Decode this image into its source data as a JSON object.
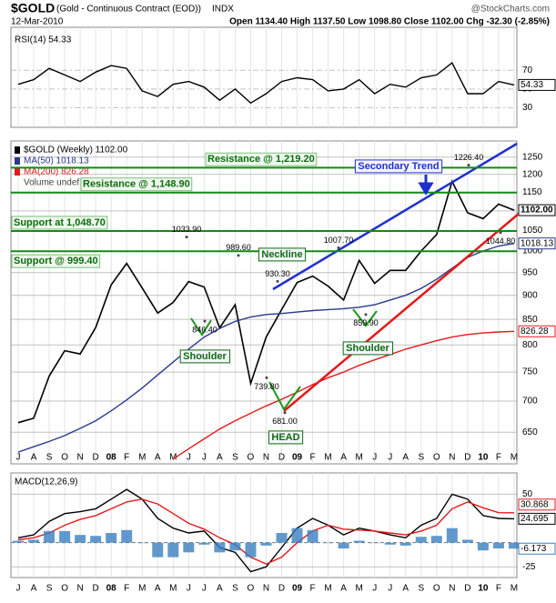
{
  "header": {
    "symbol": "$GOLD",
    "name": "(Gold - Continuous Contract (EOD))",
    "exchange": "INDX",
    "source": "@StockCharts.com",
    "date": "12-Mar-2010",
    "quote": "Open 1134.40  High 1137.50  Low 1098.80  Close 1102.00  Chg -32.30 (-2.85%)"
  },
  "chart_data": [
    {
      "type": "line",
      "ylim": [
        9,
        116
      ],
      "yticks": [
        30,
        50,
        70
      ],
      "grid": true,
      "series": [
        {
          "name": "RSI(14) 54.33",
          "color": "#000000",
          "last_value_label": "54.33",
          "values": [
            55,
            60,
            72,
            65,
            58,
            68,
            75,
            72,
            48,
            42,
            55,
            58,
            52,
            38,
            50,
            35,
            45,
            58,
            62,
            60,
            48,
            50,
            60,
            45,
            55,
            52,
            62,
            65,
            78,
            45,
            45,
            58,
            54.33
          ]
        }
      ]
    },
    {
      "type": "line",
      "log_scale": true,
      "ylim": [
        603,
        1299
      ],
      "yticks": [
        650,
        700,
        750,
        800,
        850,
        900,
        950,
        1000,
        1050,
        1100,
        1150,
        1200,
        1250
      ],
      "grid": true,
      "categories": [
        "J",
        "A",
        "S",
        "O",
        "N",
        "D",
        "08",
        "F",
        "M",
        "A",
        "M",
        "J",
        "J",
        "A",
        "S",
        "O",
        "N",
        "D",
        "09",
        "F",
        "M",
        "A",
        "M",
        "J",
        "J",
        "A",
        "S",
        "O",
        "N",
        "D",
        "10",
        "F",
        "M"
      ],
      "legend": "Volume undef",
      "series": [
        {
          "name": "$GOLD (Weekly) 1102.00",
          "color": "#000000",
          "last_value_label": "1102.00",
          "values": [
            665,
            672,
            743,
            789,
            783,
            834,
            923,
            971,
            916,
            863,
            885,
            930,
            918,
            833,
            880,
            730,
            815,
            870,
            928,
            942,
            920,
            890,
            978,
            926,
            955,
            955,
            1000,
            1040,
            1180,
            1095,
            1080,
            1118,
            1102
          ]
        },
        {
          "name": "MA(50) 1018.13",
          "color": "#2b3990",
          "last_value_label": "1018.13",
          "values": [
            620,
            628,
            636,
            645,
            656,
            668,
            684,
            702,
            722,
            745,
            768,
            792,
            815,
            832,
            846,
            855,
            860,
            862,
            865,
            868,
            870,
            872,
            875,
            880,
            890,
            900,
            915,
            935,
            960,
            985,
            1000,
            1012,
            1018.13
          ]
        },
        {
          "name": "MA(200) 826.28",
          "color": "#e31a1c",
          "last_value_label": "826.28",
          "values": [
            null,
            null,
            null,
            null,
            null,
            null,
            null,
            null,
            null,
            null,
            610,
            625,
            640,
            655,
            668,
            680,
            692,
            703,
            715,
            728,
            740,
            750,
            762,
            772,
            782,
            792,
            800,
            808,
            815,
            820,
            823,
            825,
            826.28
          ]
        }
      ],
      "levels": [
        {
          "label": "Resistance @ 1,219.20",
          "value": 1219.2
        },
        {
          "label": "Resistance @ 1,148.90",
          "value": 1148.9
        },
        {
          "label": "Support at 1,048.70",
          "value": 1048.7
        },
        {
          "label": "Support @ 999.40",
          "value": 999.4
        }
      ],
      "price_labels": [
        {
          "value": 1033.9,
          "label": "1033.90"
        },
        {
          "value": 989.6,
          "label": "989.60"
        },
        {
          "value": 930.3,
          "label": "930.30"
        },
        {
          "value": 1007.7,
          "label": "1007.70"
        },
        {
          "value": 1226.4,
          "label": "1226.40"
        },
        {
          "value": 846.4,
          "label": "846.40"
        },
        {
          "value": 739.8,
          "label": "739.80"
        },
        {
          "value": 681,
          "label": "681.00"
        },
        {
          "value": 859.9,
          "label": "859.90"
        },
        {
          "value": 1044.8,
          "label": "1044.80"
        }
      ],
      "notes": [
        "Secondary Trend",
        "Neckline",
        "Shoulder",
        "Shoulder",
        "HEAD"
      ]
    },
    {
      "type": "line",
      "ylim": [
        -36,
        72
      ],
      "yticks": [
        -25,
        50
      ],
      "grid": true,
      "categories": [
        "J",
        "A",
        "S",
        "O",
        "N",
        "D",
        "08",
        "F",
        "M",
        "A",
        "M",
        "J",
        "J",
        "A",
        "S",
        "O",
        "N",
        "D",
        "09",
        "F",
        "M",
        "A",
        "M",
        "J",
        "J",
        "A",
        "S",
        "O",
        "N",
        "D",
        "10",
        "F",
        "M"
      ],
      "title": "MACD(12,26,9)",
      "series": [
        {
          "name": "24.695",
          "color": "#000000",
          "last_value_label": "24.695",
          "values": [
            5,
            8,
            22,
            30,
            32,
            35,
            45,
            55,
            45,
            25,
            15,
            10,
            12,
            -5,
            -10,
            -30,
            -25,
            -5,
            15,
            25,
            18,
            8,
            15,
            12,
            8,
            5,
            18,
            25,
            50,
            45,
            28,
            25,
            24.695
          ]
        },
        {
          "name": "30.868",
          "color": "#e31a1c",
          "last_value_label": "30.868",
          "values": [
            3,
            5,
            10,
            18,
            24,
            28,
            35,
            42,
            45,
            40,
            30,
            20,
            14,
            5,
            -2,
            -15,
            -22,
            -15,
            0,
            12,
            18,
            14,
            13,
            12,
            10,
            8,
            12,
            18,
            35,
            42,
            36,
            31,
            30.868
          ]
        },
        {
          "name": "-6.173",
          "color": "#3a7fc1",
          "type": "bar",
          "last_value_label": "-6.173",
          "values": [
            2,
            3,
            12,
            12,
            8,
            7,
            10,
            13,
            0,
            -15,
            -15,
            -10,
            -2,
            -10,
            -8,
            -15,
            -3,
            10,
            15,
            13,
            0,
            -6,
            2,
            0,
            -2,
            -3,
            6,
            7,
            15,
            3,
            -8,
            -6,
            -6.173
          ]
        }
      ]
    }
  ]
}
